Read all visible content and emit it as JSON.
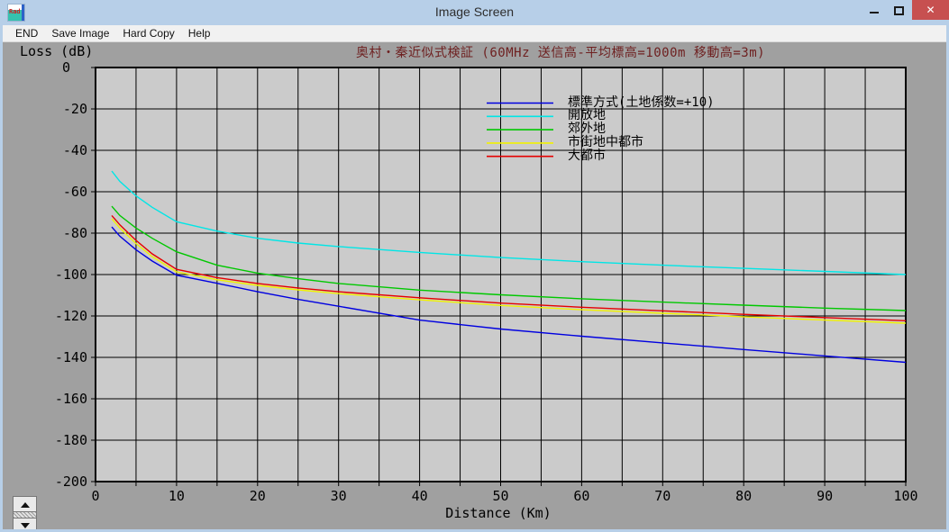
{
  "window": {
    "title": "Image Screen",
    "controls": {
      "minimize": "minimize",
      "maximize": "maximize",
      "close": "✕"
    },
    "icon_text": "Rad"
  },
  "menu": {
    "items": [
      {
        "label": "END"
      },
      {
        "label": "Save Image"
      },
      {
        "label": "Hard Copy"
      },
      {
        "label": "Help"
      }
    ]
  },
  "colors": {
    "titlebar": "#b7cfe8",
    "close_button": "#c75050",
    "chart_outer_bg": "#a0a0a0",
    "plot_bg": "#cbcbcb",
    "grid": "#000000",
    "chart_title_text": "#6e2020"
  },
  "chart_data": {
    "type": "line",
    "title": "奥村・秦近似式検証 (60MHz 送信高-平均標高=1000m 移動高=3m)",
    "xlabel": "Distance (Km)",
    "ylabel": "Loss (dB)",
    "xlim": [
      0,
      100
    ],
    "ylim": [
      -200,
      0
    ],
    "x_tick_labels": [
      "0",
      "10",
      "20",
      "30",
      "40",
      "50",
      "60",
      "70",
      "80",
      "90",
      "100"
    ],
    "y_tick_labels": [
      "0",
      "-20",
      "-40",
      "-60",
      "-80",
      "-100",
      "-120",
      "-140",
      "-160",
      "-180",
      "-200"
    ],
    "x_grid_step_km": 5,
    "y_grid_step_db": 20,
    "grid": true,
    "legend_position": "upper-center-inside",
    "x": [
      2,
      3,
      5,
      7,
      10,
      15,
      20,
      25,
      30,
      40,
      50,
      60,
      70,
      80,
      90,
      100
    ],
    "series": [
      {
        "name": "標準方式(土地係数=+10)",
        "color": "#0000e0",
        "values": [
          -77,
          -81.5,
          -88,
          -93.5,
          -100.3,
          -104.2,
          -108.3,
          -112,
          -115.3,
          -122,
          -126.3,
          -129.8,
          -133,
          -136.2,
          -139.3,
          -142.4
        ]
      },
      {
        "name": "開放地",
        "color": "#00e6e6",
        "values": [
          -50,
          -55,
          -62,
          -67.5,
          -74.5,
          -79,
          -82.5,
          -84.8,
          -86.5,
          -89.3,
          -91.8,
          -93.8,
          -95.5,
          -97,
          -98.5,
          -100
        ]
      },
      {
        "name": "郊外地",
        "color": "#00c800",
        "values": [
          -67,
          -71.5,
          -77.5,
          -82.5,
          -89,
          -95.5,
          -99.3,
          -102,
          -104.3,
          -107.5,
          -109.8,
          -111.7,
          -113.3,
          -114.8,
          -116.2,
          -117.4
        ]
      },
      {
        "name": "市街地中都市",
        "color": "#f2f200",
        "values": [
          -73,
          -77.5,
          -85,
          -91.3,
          -98.7,
          -102.5,
          -105.2,
          -107.4,
          -109.2,
          -112.2,
          -114.9,
          -117,
          -118.7,
          -120.4,
          -122,
          -123.5
        ]
      },
      {
        "name": "大都市",
        "color": "#e60000",
        "values": [
          -71.5,
          -76,
          -83.5,
          -90,
          -97.5,
          -101.5,
          -104.3,
          -106.5,
          -108.3,
          -111.2,
          -113.8,
          -115.8,
          -117.5,
          -119.2,
          -120.8,
          -122.3
        ]
      }
    ]
  }
}
